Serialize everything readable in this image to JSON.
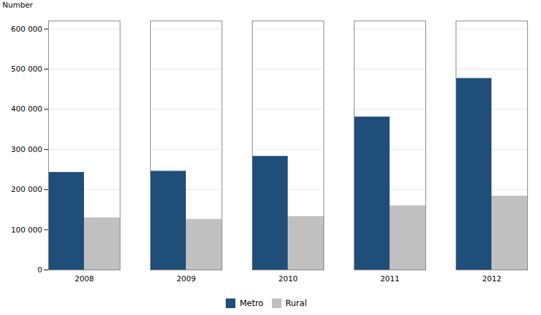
{
  "chart_data": {
    "type": "bar",
    "categories": [
      "2008",
      "2009",
      "2010",
      "2011",
      "2012"
    ],
    "series": [
      {
        "name": "Metro",
        "color": "#1f4e79",
        "values": [
          243000,
          246000,
          283000,
          381000,
          477000
        ]
      },
      {
        "name": "Rural",
        "color": "#c0c0c0",
        "values": [
          130000,
          126000,
          133000,
          160000,
          184000
        ]
      }
    ],
    "ylabel": "Number",
    "ylim": [
      0,
      620000
    ],
    "yticks": [
      0,
      {
        "value": 100000,
        "label": "100 000"
      },
      {
        "value": 200000,
        "label": "200 000"
      },
      {
        "value": 300000,
        "label": "300 000"
      },
      {
        "value": 400000,
        "label": "400 000"
      },
      {
        "value": 500000,
        "label": "500 000"
      },
      {
        "value": 600000,
        "label": "600 000"
      }
    ],
    "grid": true,
    "legend": "bottom"
  }
}
